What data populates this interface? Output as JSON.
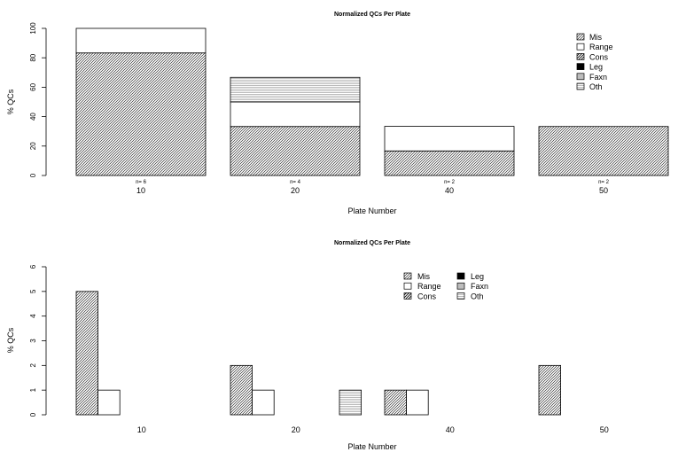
{
  "colors": {
    "ink": "#000000",
    "fill_none": "#ffffff"
  },
  "chart_data": [
    {
      "type": "bar",
      "layout": "stacked",
      "title": "Normalized QCs Per Plate",
      "xlabel": "Plate Number",
      "ylabel": "% QCs",
      "ylim": [
        0,
        100
      ],
      "yticks": [
        0,
        20,
        40,
        60,
        80,
        100
      ],
      "categories": [
        "10",
        "20",
        "40",
        "50"
      ],
      "counts": [
        "n= 6",
        "n= 4",
        "n= 2",
        "n= 2"
      ],
      "series": [
        {
          "name": "Mis",
          "pattern": "diag",
          "values": [
            83.3,
            33.3,
            16.7,
            33.3
          ]
        },
        {
          "name": "Range",
          "pattern": "blank",
          "values": [
            16.7,
            16.7,
            16.7,
            0
          ]
        },
        {
          "name": "Cons",
          "pattern": "diag2",
          "values": [
            0,
            0,
            0,
            0
          ]
        },
        {
          "name": "Leg",
          "pattern": "solid",
          "values": [
            0,
            0,
            0,
            0
          ]
        },
        {
          "name": "Faxn",
          "pattern": "grey",
          "values": [
            0,
            0,
            0,
            0
          ]
        },
        {
          "name": "Oth",
          "pattern": "hlines",
          "values": [
            0,
            16.7,
            0,
            0
          ]
        }
      ],
      "legend_position": "top-right",
      "grid": false
    },
    {
      "type": "bar",
      "layout": "grouped",
      "title": "Normalized QCs Per Plate",
      "xlabel": "Plate Number",
      "ylabel": "% QCs",
      "ylim": [
        0,
        6
      ],
      "yticks": [
        0,
        1,
        2,
        3,
        4,
        5,
        6
      ],
      "categories": [
        "10",
        "20",
        "40",
        "50"
      ],
      "series": [
        {
          "name": "Mis",
          "pattern": "diag",
          "values": [
            5,
            2,
            1,
            2
          ]
        },
        {
          "name": "Range",
          "pattern": "blank",
          "values": [
            1,
            1,
            1,
            0
          ]
        },
        {
          "name": "Cons",
          "pattern": "diag2",
          "values": [
            0,
            0,
            0,
            0
          ]
        },
        {
          "name": "Leg",
          "pattern": "solid",
          "values": [
            0,
            0,
            0,
            0
          ]
        },
        {
          "name": "Faxn",
          "pattern": "grey",
          "values": [
            0,
            0,
            0,
            0
          ]
        },
        {
          "name": "Oth",
          "pattern": "hlines",
          "values": [
            0,
            1,
            0,
            0
          ]
        }
      ],
      "legend_position": "top-right",
      "grid": false
    }
  ]
}
